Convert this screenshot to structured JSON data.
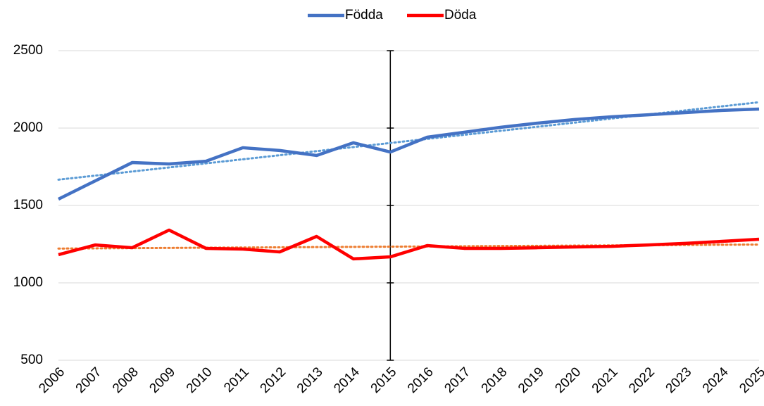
{
  "chart_data": {
    "type": "line",
    "categories": [
      "2006",
      "2007",
      "2008",
      "2009",
      "2010",
      "2011",
      "2012",
      "2013",
      "2014",
      "2015",
      "2016",
      "2017",
      "2018",
      "2019",
      "2020",
      "2021",
      "2022",
      "2023",
      "2024",
      "2025"
    ],
    "series": [
      {
        "name": "Födda",
        "color": "#4472c4",
        "trendline": true,
        "trendline_color": "#5b9bd5",
        "values": [
          1541,
          1659,
          1777,
          1768,
          1786,
          1873,
          1855,
          1823,
          1905,
          1845,
          1941,
          1973,
          2005,
          2032,
          2055,
          2073,
          2086,
          2100,
          2114,
          2123
        ]
      },
      {
        "name": "Döda",
        "color": "#ff0000",
        "trendline": true,
        "trendline_color": "#ed7d31",
        "values": [
          1182,
          1245,
          1227,
          1341,
          1223,
          1218,
          1200,
          1300,
          1155,
          1168,
          1241,
          1223,
          1223,
          1227,
          1232,
          1236,
          1245,
          1255,
          1268,
          1282
        ]
      }
    ],
    "ylim": [
      500,
      2500
    ],
    "yticks": [
      500,
      1000,
      1500,
      2000,
      2500
    ],
    "grid": true,
    "legend": "top",
    "y_axis_crosses": "2015"
  }
}
